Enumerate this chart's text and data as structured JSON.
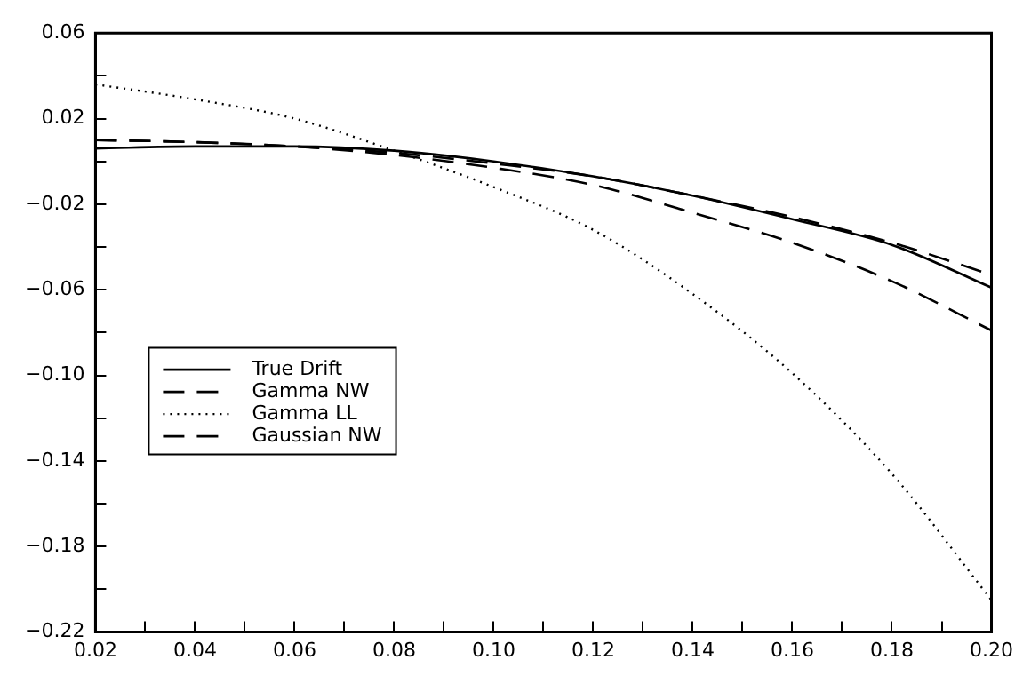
{
  "chart_data": {
    "type": "line",
    "x": [
      0.02,
      0.04,
      0.06,
      0.08,
      0.1,
      0.12,
      0.14,
      0.16,
      0.18,
      0.2
    ],
    "series": [
      {
        "name": "True Drift",
        "color": "#000000",
        "line_style": "solid",
        "values": [
          0.006,
          0.007,
          0.007,
          0.005,
          0.0,
          -0.007,
          -0.016,
          -0.027,
          -0.039,
          -0.059
        ]
      },
      {
        "name": "Gamma NW",
        "color": "#000000",
        "line_style": "dashed",
        "values": [
          0.01,
          0.009,
          0.007,
          0.004,
          -0.001,
          -0.007,
          -0.016,
          -0.026,
          -0.038,
          -0.053
        ]
      },
      {
        "name": "Gamma LL",
        "color": "#000000",
        "line_style": "dotted",
        "values": [
          0.036,
          0.029,
          0.02,
          0.005,
          -0.012,
          -0.032,
          -0.062,
          -0.099,
          -0.146,
          -0.205
        ]
      },
      {
        "name": "Gaussian NW",
        "color": "#000000",
        "line_style": "dashed",
        "values": [
          0.01,
          0.009,
          0.007,
          0.003,
          -0.003,
          -0.011,
          -0.024,
          -0.038,
          -0.056,
          -0.079
        ]
      }
    ],
    "xlim": [
      0.02,
      0.2
    ],
    "xticks": [
      0.02,
      {
        "value": 0.03,
        "label": null
      },
      0.04,
      {
        "value": 0.05,
        "label": null
      },
      0.06,
      {
        "value": 0.07,
        "label": null
      },
      0.08,
      {
        "value": 0.09,
        "label": null
      },
      {
        "value": 0.1,
        "label": "0.10"
      },
      {
        "value": 0.11,
        "label": null
      },
      0.12,
      {
        "value": 0.13,
        "label": null
      },
      0.14,
      {
        "value": 0.15,
        "label": null
      },
      0.16,
      {
        "value": 0.17,
        "label": null
      },
      0.18,
      {
        "value": 0.19,
        "label": null
      },
      {
        "value": 0.2,
        "label": "0.20"
      }
    ],
    "ylim": [
      -0.22,
      0.06
    ],
    "yticks": [
      -0.22,
      {
        "value": -0.2,
        "label": null
      },
      -0.18,
      {
        "value": -0.16,
        "label": null
      },
      -0.14,
      {
        "value": -0.12,
        "label": null
      },
      {
        "value": -0.1,
        "label": "−0.10"
      },
      {
        "value": -0.08,
        "label": null
      },
      -0.06,
      {
        "value": -0.04,
        "label": null
      },
      -0.02,
      {
        "value": 0,
        "label": null
      },
      0.02,
      {
        "value": 0.04,
        "label": null
      },
      0.06
    ],
    "grid": false,
    "legend": "bottom left",
    "marker": "none"
  }
}
